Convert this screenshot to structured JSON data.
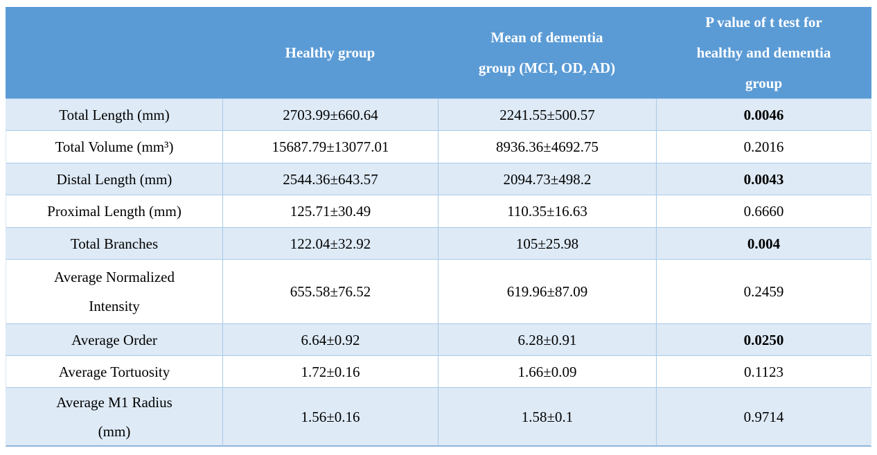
{
  "table": {
    "columns": [
      "",
      "Healthy group",
      "Mean of dementia\ngroup (MCI, OD, AD)",
      "P value of t test for\nhealthy and dementia\ngroup"
    ],
    "rows": [
      {
        "label": "Total Length (mm)",
        "healthy": "2703.99±660.64",
        "dementia": "2241.55±500.57",
        "p": "0.0046",
        "p_bold": true
      },
      {
        "label": "Total Volume (mm³)",
        "healthy": "15687.79±13077.01",
        "dementia": "8936.36±4692.75",
        "p": "0.2016",
        "p_bold": false
      },
      {
        "label": "Distal Length (mm)",
        "healthy": "2544.36±643.57",
        "dementia": "2094.73±498.2",
        "p": "0.0043",
        "p_bold": true
      },
      {
        "label": "Proximal Length (mm)",
        "healthy": "125.71±30.49",
        "dementia": "110.35±16.63",
        "p": "0.6660",
        "p_bold": false
      },
      {
        "label": "Total Branches",
        "healthy": "122.04±32.92",
        "dementia": "105±25.98",
        "p": "0.004",
        "p_bold": true
      },
      {
        "label": "Average Normalized\nIntensity",
        "healthy": "655.58±76.52",
        "dementia": "619.96±87.09",
        "p": "0.2459",
        "p_bold": false
      },
      {
        "label": "Average Order",
        "healthy": "6.64±0.92",
        "dementia": "6.28±0.91",
        "p": "0.0250",
        "p_bold": true
      },
      {
        "label": "Average Tortuosity",
        "healthy": "1.72±0.16",
        "dementia": "1.66±0.09",
        "p": "0.1123",
        "p_bold": false
      },
      {
        "label": "Average M1 Radius\n(mm)",
        "healthy": "1.56±0.16",
        "dementia": "1.58±0.1",
        "p": "0.9714",
        "p_bold": false
      }
    ]
  },
  "colors": {
    "header_bg": "#5B9BD5",
    "header_text": "#FFFFFF",
    "banded_row_bg": "#DEEAF6",
    "plain_row_bg": "#FFFFFF",
    "inner_border": "#A8C9E8",
    "bottom_border": "#8FB4DC",
    "body_text": "#000000"
  }
}
